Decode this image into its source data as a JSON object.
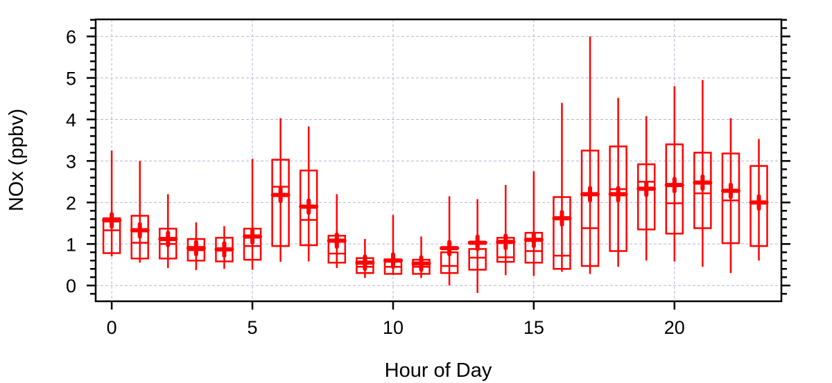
{
  "chart_data": {
    "type": "box",
    "xlabel": "Hour of Day",
    "ylabel": "NOx (ppbv)",
    "xlim": [
      -0.57,
      23.8
    ],
    "ylim": [
      -0.38,
      6.41
    ],
    "xticks": [
      0,
      5,
      10,
      15,
      20
    ],
    "yticks": [
      0,
      1,
      2,
      3,
      4,
      5,
      6
    ],
    "grid": true,
    "color": "#ff0000",
    "grid_color": "#b4b4dc",
    "x": [
      0,
      1,
      2,
      3,
      4,
      5,
      6,
      7,
      8,
      9,
      10,
      11,
      12,
      13,
      14,
      15,
      16,
      17,
      18,
      19,
      20,
      21,
      22,
      23
    ],
    "whisker_low": [
      0.7,
      0.55,
      0.42,
      0.37,
      0.4,
      0.38,
      0.57,
      0.58,
      0.42,
      0.18,
      0.25,
      0.18,
      0.0,
      -0.18,
      0.25,
      0.23,
      0.33,
      0.28,
      0.45,
      0.6,
      0.58,
      0.45,
      0.3,
      0.6
    ],
    "q1": [
      0.78,
      0.65,
      0.65,
      0.6,
      0.58,
      0.62,
      0.95,
      0.97,
      0.55,
      0.3,
      0.28,
      0.28,
      0.3,
      0.38,
      0.57,
      0.55,
      0.4,
      0.47,
      0.83,
      1.35,
      1.25,
      1.38,
      1.02,
      0.95
    ],
    "median": [
      1.33,
      1.03,
      1.0,
      0.85,
      0.85,
      0.95,
      2.38,
      1.58,
      0.77,
      0.45,
      0.45,
      0.45,
      0.47,
      0.67,
      0.68,
      0.83,
      0.72,
      1.38,
      2.32,
      2.5,
      1.98,
      2.22,
      2.05,
      2.0
    ],
    "q3": [
      1.62,
      1.68,
      1.37,
      1.12,
      1.15,
      1.37,
      3.03,
      2.77,
      1.2,
      0.66,
      0.63,
      0.62,
      0.8,
      0.88,
      1.15,
      1.27,
      2.13,
      3.25,
      3.35,
      2.92,
      3.4,
      3.2,
      3.18,
      2.88
    ],
    "whisker_high": [
      3.25,
      3.0,
      2.2,
      1.52,
      1.43,
      3.05,
      4.03,
      3.83,
      2.2,
      1.12,
      1.7,
      1.18,
      2.15,
      2.08,
      2.42,
      2.75,
      4.4,
      6.0,
      4.52,
      4.08,
      4.8,
      4.95,
      4.03,
      3.53
    ],
    "mean": [
      1.57,
      1.33,
      1.12,
      0.9,
      0.87,
      1.18,
      2.18,
      1.9,
      1.08,
      0.55,
      0.6,
      0.53,
      0.9,
      1.03,
      1.05,
      1.1,
      1.62,
      2.2,
      2.2,
      2.33,
      2.42,
      2.48,
      2.28,
      2.0
    ]
  }
}
